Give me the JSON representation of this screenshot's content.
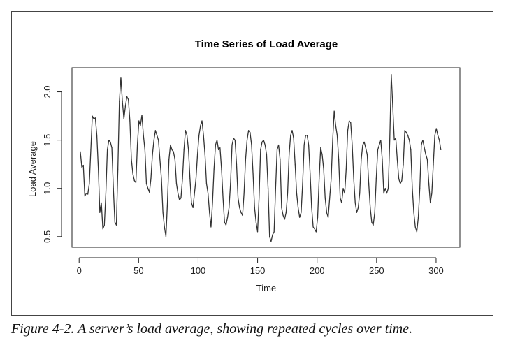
{
  "caption": "Figure 4-2. A server’s load average, showing repeated cycles over time.",
  "chart_data": {
    "type": "line",
    "title": "Time Series of Load Average",
    "xlabel": "Time",
    "ylabel": "Load Average",
    "xlim": [
      -6,
      320
    ],
    "ylim": [
      0.39,
      2.25
    ],
    "xticks": [
      0,
      50,
      100,
      150,
      200,
      250,
      300
    ],
    "yticks": [
      0.5,
      1.0,
      1.5,
      2.0
    ],
    "ytick_labels": [
      "0.5",
      "1.0",
      "1.5",
      "2.0"
    ],
    "grid": false,
    "line_color": "#333333",
    "series": [
      {
        "values": [
          1.38,
          1.22,
          1.24,
          0.92,
          0.95,
          0.94,
          1.05,
          1.4,
          1.75,
          1.72,
          1.73,
          1.55,
          1.2,
          0.75,
          0.85,
          0.58,
          0.62,
          0.95,
          1.4,
          1.5,
          1.48,
          1.42,
          1.0,
          0.65,
          0.62,
          1.2,
          1.9,
          2.15,
          1.9,
          1.72,
          1.85,
          1.95,
          1.92,
          1.7,
          1.3,
          1.15,
          1.08,
          1.06,
          1.45,
          1.7,
          1.65,
          1.76,
          1.55,
          1.4,
          1.05,
          1.0,
          0.96,
          1.1,
          1.35,
          1.5,
          1.6,
          1.55,
          1.5,
          1.3,
          1.1,
          0.75,
          0.6,
          0.5,
          0.85,
          1.3,
          1.45,
          1.4,
          1.38,
          1.3,
          1.05,
          0.95,
          0.88,
          0.9,
          1.1,
          1.4,
          1.6,
          1.55,
          1.4,
          1.1,
          0.85,
          0.8,
          0.95,
          1.1,
          1.35,
          1.55,
          1.65,
          1.7,
          1.55,
          1.35,
          1.05,
          0.95,
          0.75,
          0.6,
          0.85,
          1.2,
          1.45,
          1.5,
          1.4,
          1.42,
          1.2,
          0.9,
          0.65,
          0.62,
          0.7,
          0.8,
          1.05,
          1.45,
          1.52,
          1.5,
          1.25,
          0.9,
          0.8,
          0.75,
          0.72,
          0.95,
          1.3,
          1.5,
          1.6,
          1.58,
          1.45,
          1.15,
          0.8,
          0.65,
          0.55,
          0.9,
          1.4,
          1.48,
          1.5,
          1.45,
          1.35,
          1.0,
          0.5,
          0.45,
          0.52,
          0.55,
          1.0,
          1.4,
          1.45,
          1.3,
          0.8,
          0.72,
          0.68,
          0.75,
          0.95,
          1.35,
          1.55,
          1.6,
          1.52,
          1.25,
          0.95,
          0.8,
          0.7,
          0.75,
          1.05,
          1.45,
          1.55,
          1.55,
          1.45,
          1.15,
          0.8,
          0.6,
          0.58,
          0.55,
          0.7,
          1.1,
          1.42,
          1.35,
          1.2,
          0.9,
          0.75,
          0.7,
          0.9,
          1.1,
          1.5,
          1.8,
          1.65,
          1.55,
          1.3,
          0.9,
          0.85,
          1.0,
          0.95,
          1.2,
          1.6,
          1.7,
          1.68,
          1.45,
          1.1,
          0.85,
          0.75,
          0.8,
          0.95,
          1.3,
          1.45,
          1.48,
          1.42,
          1.35,
          1.05,
          0.8,
          0.65,
          0.62,
          0.75,
          1.1,
          1.4,
          1.45,
          1.5,
          1.3,
          0.95,
          1.0,
          0.95,
          1.0,
          1.5,
          2.18,
          1.85,
          1.5,
          1.52,
          1.3,
          1.1,
          1.05,
          1.08,
          1.25,
          1.6,
          1.58,
          1.55,
          1.5,
          1.4,
          1.0,
          0.75,
          0.6,
          0.55,
          0.7,
          1.0,
          1.45,
          1.5,
          1.42,
          1.35,
          1.3,
          1.05,
          0.85,
          0.95,
          1.25,
          1.55,
          1.62,
          1.55,
          1.5,
          1.4
        ]
      }
    ]
  }
}
